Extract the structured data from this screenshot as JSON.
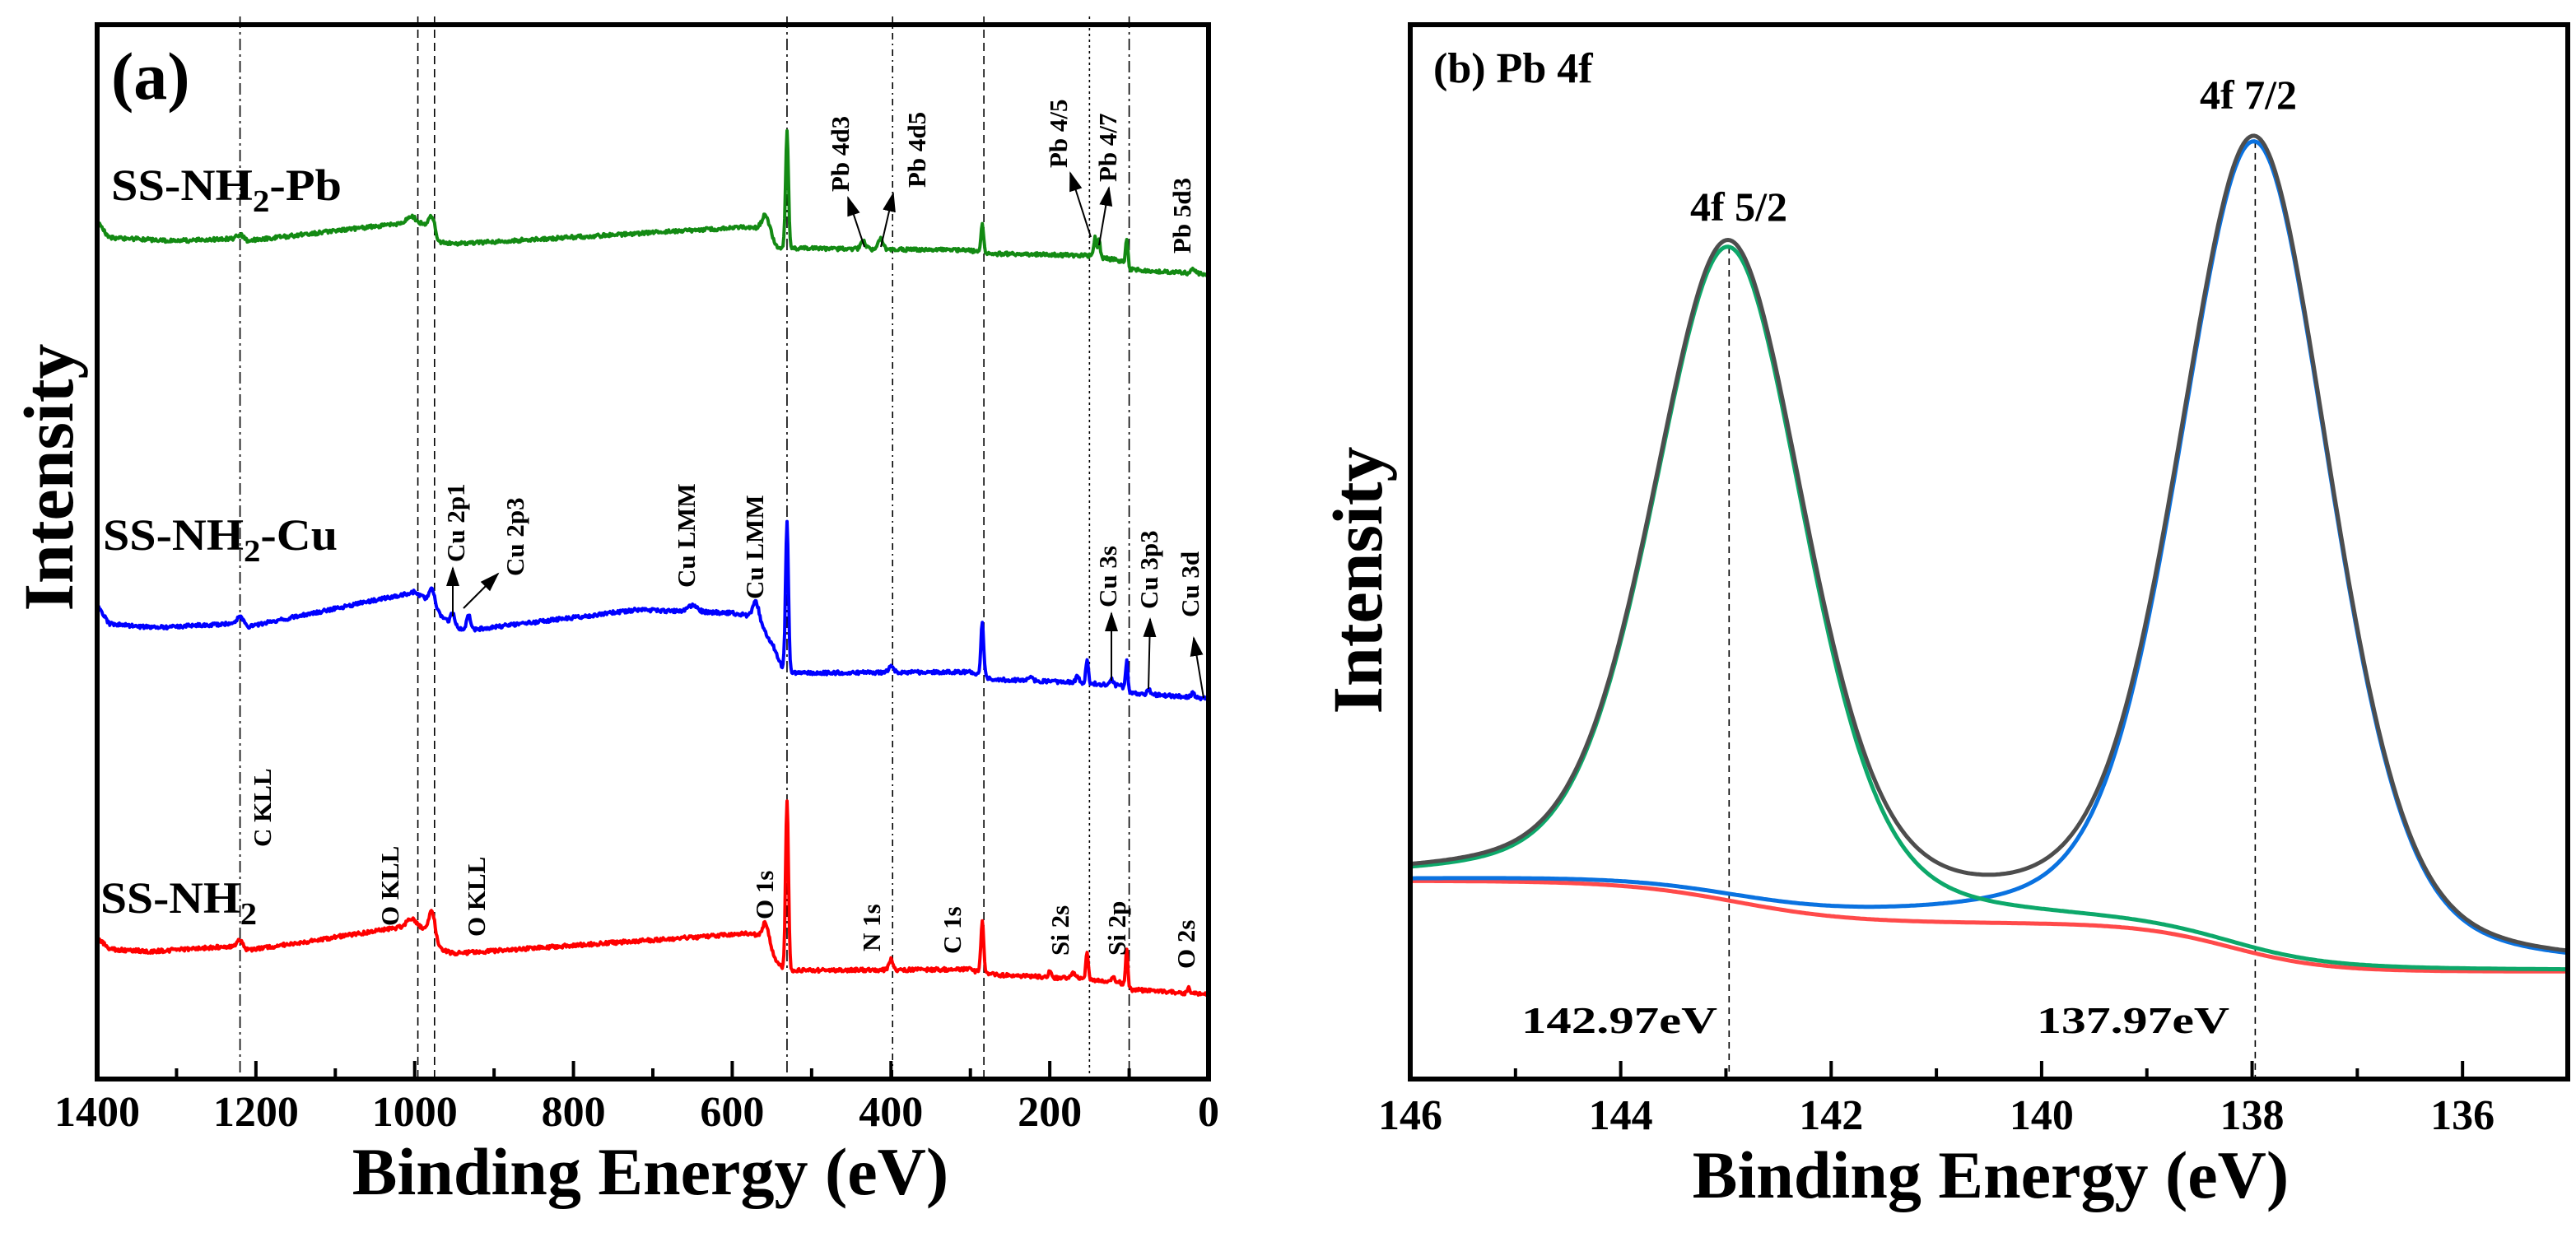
{
  "chart_data": [
    {
      "type": "line",
      "panel_label": "(a)",
      "title": "",
      "xlabel": "Binding Energy (eV)",
      "ylabel": "Intensity",
      "xlim": [
        1400,
        0
      ],
      "ylim": [
        0,
        100
      ],
      "y_units": "arbitrary",
      "x_reversed": true,
      "xticks": [
        1400,
        1200,
        1000,
        800,
        600,
        400,
        200,
        0
      ],
      "xtick_labels": [
        "1400",
        "1200",
        "1000",
        "800",
        "600",
        "400",
        "200",
        "0"
      ],
      "grid": false,
      "reference_lines_eV": [
        1220,
        996,
        975,
        531,
        398,
        283,
        150,
        100
      ],
      "series": [
        {
          "name_parts": {
            "pre": "SS-NH",
            "sub": "2",
            "post": "-Pb"
          },
          "color": "#138a13",
          "background_knots": [
            [
              1400,
              81.3
            ],
            [
              1385,
              79.8
            ],
            [
              1300,
              79.5
            ],
            [
              1230,
              79.7
            ],
            [
              1210,
              79.5
            ],
            [
              1000,
              81.3
            ],
            [
              985,
              81
            ],
            [
              970,
              79.4
            ],
            [
              950,
              79.2
            ],
            [
              580,
              80.8
            ],
            [
              560,
              80.6
            ],
            [
              545,
              79
            ],
            [
              535,
              78.8
            ],
            [
              300,
              78.6
            ],
            [
              285,
              78.3
            ],
            [
              150,
              78.1
            ],
            [
              110,
              77.6
            ],
            [
              100,
              76.8
            ],
            [
              0,
              76.3
            ]
          ],
          "peaks": [
            [
              1220,
              0.5,
              4
            ],
            [
              1005,
              0.6,
              5
            ],
            [
              978,
              1.6,
              3.5
            ],
            [
              557,
              1.5,
              5
            ],
            [
              531,
              11,
              1.8
            ],
            [
              435,
              0.8,
              3
            ],
            [
              413,
              1,
              3
            ],
            [
              285,
              2.7,
              1.8
            ],
            [
              143,
              1.8,
              1.5
            ],
            [
              138,
              1.6,
              1.5
            ],
            [
              103,
              2.7,
              1.5
            ],
            [
              20,
              0.4,
              3
            ]
          ]
        },
        {
          "name_parts": {
            "pre": "SS-NH",
            "sub": "2",
            "post": "-Cu"
          },
          "color": "#0000ff",
          "background_knots": [
            [
              1400,
              44.9
            ],
            [
              1385,
              43.2
            ],
            [
              1330,
              42.8
            ],
            [
              1230,
              43.2
            ],
            [
              1210,
              42.9
            ],
            [
              1000,
              46.2
            ],
            [
              985,
              45.5
            ],
            [
              965,
              43.8
            ],
            [
              945,
              42.7
            ],
            [
              930,
              42.6
            ],
            [
              720,
              44.5
            ],
            [
              600,
              44.2
            ],
            [
              570,
              43.8
            ],
            [
              548,
              41
            ],
            [
              538,
              39.2
            ],
            [
              525,
              38.5
            ],
            [
              300,
              38.6
            ],
            [
              285,
              38.2
            ],
            [
              270,
              37.9
            ],
            [
              160,
              37.6
            ],
            [
              110,
              37.3
            ],
            [
              100,
              36.6
            ],
            [
              0,
              36.1
            ]
          ],
          "peaks": [
            [
              1220,
              0.8,
              4
            ],
            [
              978,
              1.5,
              3.5
            ],
            [
              952,
              1.2,
              2.5
            ],
            [
              932,
              1.5,
              2.5
            ],
            [
              650,
              0.6,
              6
            ],
            [
              570,
              1.5,
              4
            ],
            [
              531,
              14,
              1.8
            ],
            [
              400,
              0.6,
              3
            ],
            [
              285,
              5,
              1.8
            ],
            [
              225,
              0.3,
              3
            ],
            [
              165,
              0.6,
              2
            ],
            [
              153,
              2.3,
              1.5
            ],
            [
              122,
              0.5,
              2
            ],
            [
              103,
              2.8,
              1.5
            ],
            [
              75,
              0.5,
              2
            ],
            [
              20,
              0.4,
              2
            ]
          ]
        },
        {
          "name_parts": {
            "pre": "SS-NH",
            "sub": "2",
            "post": ""
          },
          "color": "#ff0000",
          "background_knots": [
            [
              1400,
              13.5
            ],
            [
              1385,
              12.3
            ],
            [
              1330,
              12.1
            ],
            [
              1230,
              12.6
            ],
            [
              1210,
              12.2
            ],
            [
              1000,
              14.6
            ],
            [
              985,
              14.2
            ],
            [
              965,
              12.2
            ],
            [
              950,
              11.9
            ],
            [
              580,
              13.8
            ],
            [
              560,
              13.6
            ],
            [
              545,
              11.2
            ],
            [
              536,
              10.5
            ],
            [
              525,
              10.3
            ],
            [
              300,
              10.4
            ],
            [
              285,
              10
            ],
            [
              270,
              9.9
            ],
            [
              160,
              9.5
            ],
            [
              112,
              9.2
            ],
            [
              100,
              8.5
            ],
            [
              0,
              8.0
            ]
          ],
          "peaks": [
            [
              1220,
              0.8,
              4
            ],
            [
              1005,
              0.7,
              5
            ],
            [
              978,
              2.5,
              3.5
            ],
            [
              557,
              1.5,
              4
            ],
            [
              531,
              16,
              1.8
            ],
            [
              400,
              1,
              2.5
            ],
            [
              285,
              5,
              1.8
            ],
            [
              200,
              0.5,
              2
            ],
            [
              170,
              0.5,
              3
            ],
            [
              153,
              2.6,
              1.5
            ],
            [
              120,
              0.4,
              2
            ],
            [
              103,
              3.5,
              1.5
            ],
            [
              25,
              0.5,
              2
            ]
          ]
        }
      ],
      "annotations": [
        {
          "text": "Pb 4d3"
        },
        {
          "text": "Pb 4d5"
        },
        {
          "text": "Pb 4/5"
        },
        {
          "text": "Pb 4/7"
        },
        {
          "text": "Pb 5d3"
        },
        {
          "text": "Cu 2p1"
        },
        {
          "text": "Cu 2p3"
        },
        {
          "text": "Cu LMM"
        },
        {
          "text": "Cu LMM"
        },
        {
          "text": "Cu 3s"
        },
        {
          "text": "Cu 3p3"
        },
        {
          "text": "Cu 3d"
        },
        {
          "text": "C KLL"
        },
        {
          "text": "O KLL"
        },
        {
          "text": "O KLL"
        },
        {
          "text": "O 1s"
        },
        {
          "text": "N 1s"
        },
        {
          "text": "C 1s"
        },
        {
          "text": "Si 2s"
        },
        {
          "text": "Si 2p"
        },
        {
          "text": "O 2s"
        }
      ]
    },
    {
      "type": "line",
      "panel_label": "(b) Pb 4f",
      "title": "Pb 4f",
      "xlabel": "Binding Energy (eV)",
      "ylabel": "Intensity",
      "xlim": [
        146,
        135
      ],
      "ylim": [
        0,
        100
      ],
      "y_units": "arbitrary",
      "x_reversed": true,
      "xticks": [
        146,
        144,
        142,
        140,
        138,
        136
      ],
      "xtick_labels": [
        "146",
        "144",
        "142",
        "140",
        "138",
        "136"
      ],
      "grid": false,
      "background": {
        "base": 10.2,
        "steps": [
          {
            "center": 142.9,
            "height": 4.0,
            "width": 0.55
          },
          {
            "center": 138.2,
            "height": 4.6,
            "width": 0.45
          }
        ],
        "color": "#ff4a4a"
      },
      "peaks": [
        {
          "label": "4f 5/2",
          "center": 142.97,
          "height": 62,
          "fwhm": 1.7,
          "lorentz_fraction": 0.3,
          "value_label": "142.97eV",
          "color": "#0da86a"
        },
        {
          "label": "4f 7/2",
          "center": 137.97,
          "height": 77,
          "fwhm": 1.7,
          "lorentz_fraction": 0.3,
          "value_label": "137.97eV",
          "color": "#0a72e0"
        }
      ],
      "envelope_color": "#4d4d4d"
    }
  ]
}
